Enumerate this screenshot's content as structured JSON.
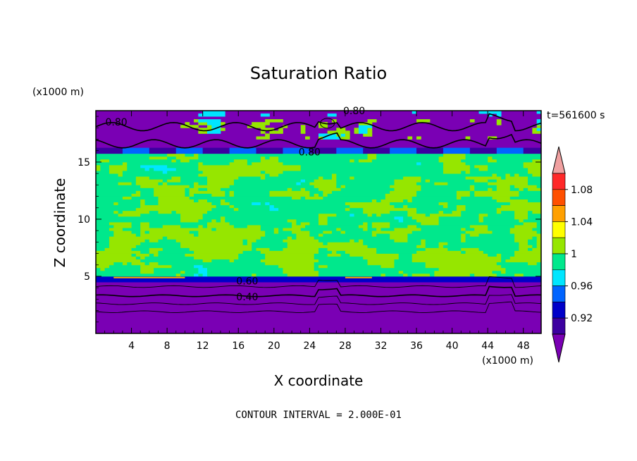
{
  "chart_data": {
    "type": "heatmap",
    "title": "Saturation Ratio",
    "xlabel": "X coordinate",
    "ylabel": "Z coordinate",
    "x_unit": "(x1000 m)",
    "y_unit": "(x1000 m)",
    "time_label": "t=561600 s",
    "footer": "CONTOUR INTERVAL = 2.000E-01",
    "xlim": [
      0,
      50
    ],
    "ylim": [
      0,
      19.5
    ],
    "x_ticks": [
      4,
      8,
      12,
      16,
      20,
      24,
      28,
      32,
      36,
      40,
      44,
      48
    ],
    "y_ticks": [
      5,
      10,
      15
    ],
    "colorbar": {
      "levels": [
        0.9,
        0.92,
        0.94,
        0.96,
        0.98,
        1.0,
        1.02,
        1.04,
        1.06,
        1.08,
        1.1
      ],
      "tick_labels": [
        "0.92",
        "0.96",
        "1",
        "1.04",
        "1.08"
      ],
      "colors": [
        "#7a00b4",
        "#3c00a0",
        "#0000c8",
        "#0064ff",
        "#00e6ff",
        "#00e88c",
        "#96e600",
        "#ffff00",
        "#ffa000",
        "#ff5000",
        "#ff2828",
        "#f0a0a0"
      ]
    },
    "contour_labels": [
      {
        "x": 2.3,
        "y": 18.5,
        "text": "0.80"
      },
      {
        "x": 29.0,
        "y": 19.5,
        "text": "0.80"
      },
      {
        "x": 24.0,
        "y": 15.9,
        "text": "0.80"
      },
      {
        "x": 17.0,
        "y": 4.6,
        "text": "0.60"
      },
      {
        "x": 17.0,
        "y": 3.2,
        "text": "0.40"
      }
    ]
  }
}
